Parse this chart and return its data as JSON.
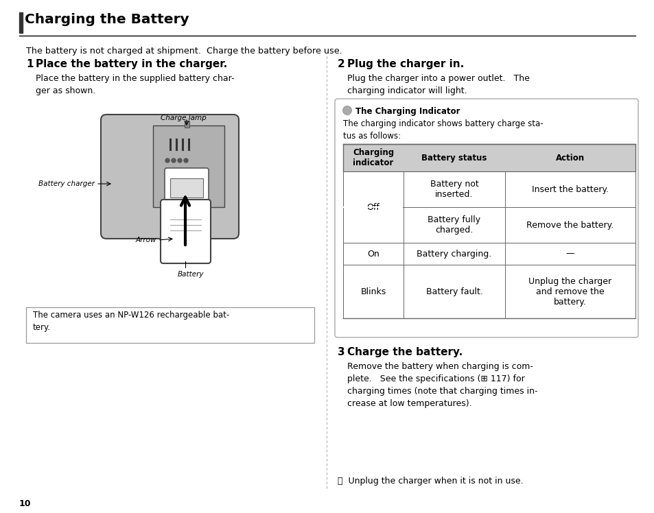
{
  "bg_color": "#ffffff",
  "title": "Charging the Battery",
  "title_bar_color": "#333333",
  "subtitle": "The battery is not charged at shipment.  Charge the battery before use.",
  "section1_num": "1",
  "section1_head": "Place the battery in the charger.",
  "section1_body": "Place the battery in the supplied battery char-\nger as shown.",
  "note_box_text": "The camera uses an NP-W126 rechargeable bat-\ntery.",
  "section2_num": "2",
  "section2_head": "Plug the charger in.",
  "section2_body": "Plug the charger into a power outlet.   The\ncharging indicator will light.",
  "indicator_title": "The Charging Indicator",
  "indicator_desc": "The charging indicator shows battery charge sta-\ntus as follows:",
  "table_headers": [
    "Charging\nindicator",
    "Battery status",
    "Action"
  ],
  "table_rows": [
    [
      "Off",
      "Battery not\ninserted.",
      "Insert the battery."
    ],
    [
      "",
      "Battery fully\ncharged.",
      "Remove the battery."
    ],
    [
      "On",
      "Battery charging.",
      "—"
    ],
    [
      "Blinks",
      "Battery fault.",
      "Unplug the charger\nand remove the\nbattery."
    ]
  ],
  "section3_num": "3",
  "section3_head": "Charge the battery.",
  "section3_body": "Remove the battery when charging is com-\nplete.   See the specifications (⊞ 117) for\ncharging times (note that charging times in-\ncrease at low temperatures).",
  "footer_note": "ⓘ  Unplug the charger when it is not in use.",
  "page_number": "10",
  "charge_lamp_label": "Charge lamp",
  "battery_charger_label": "Battery charger",
  "arrow_label": "Arrow",
  "battery_label": "Battery",
  "header_bg": "#cccccc",
  "table_border": "#666666",
  "indicator_box_border": "#aaaaaa",
  "divider_color": "#aaaaaa"
}
